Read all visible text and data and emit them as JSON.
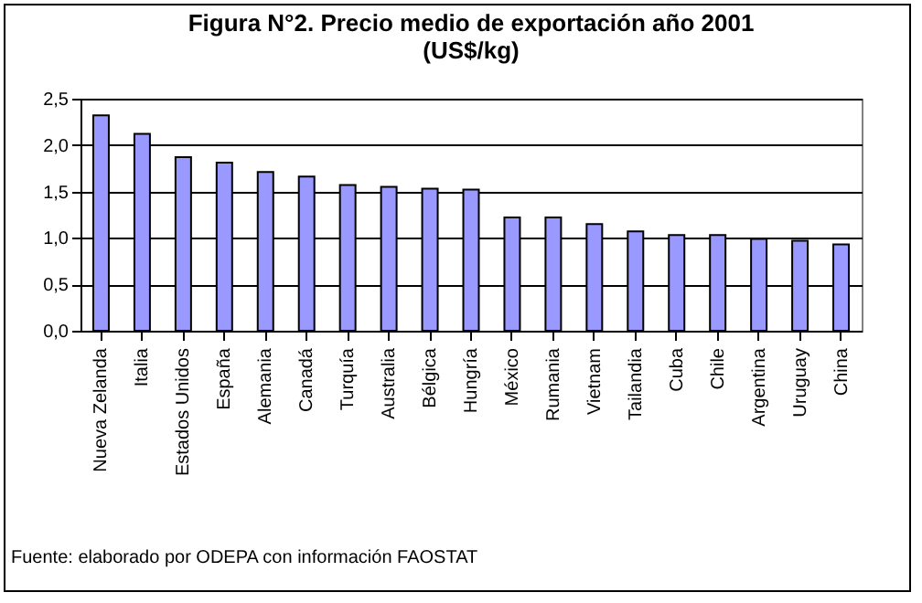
{
  "chart_data": {
    "type": "bar",
    "title": [
      "Figura N°2. Precio medio de exportación año 2001",
      "(US$/kg)"
    ],
    "categories": [
      "Nueva Zelanda",
      "Italia",
      "Estados Unidos",
      "España",
      "Alemania",
      "Canadá",
      "Turquía",
      "Australia",
      "Bélgica",
      "Hungría",
      "México",
      "Rumania",
      "Vietnam",
      "Tailandia",
      "Cuba",
      "Chile",
      "Argentina",
      "Uruguay",
      "China"
    ],
    "values": [
      2.32,
      2.12,
      1.87,
      1.81,
      1.71,
      1.66,
      1.57,
      1.55,
      1.53,
      1.52,
      1.22,
      1.22,
      1.15,
      1.07,
      1.03,
      1.03,
      0.99,
      0.97,
      0.93
    ],
    "color": "#9999ff",
    "ylim": [
      0,
      2.5
    ],
    "yticks": [
      {
        "value": 0,
        "label": "0,0"
      },
      {
        "value": 0.5,
        "label": "0,5"
      },
      {
        "value": 1,
        "label": "1,0"
      },
      {
        "value": 1.5,
        "label": "1,5"
      },
      {
        "value": 2,
        "label": "2,0"
      },
      {
        "value": 2.5,
        "label": "2,5"
      }
    ],
    "grid": "y",
    "annotations": [
      "Fuente: elaborado por ODEPA con información FAOSTAT"
    ]
  }
}
